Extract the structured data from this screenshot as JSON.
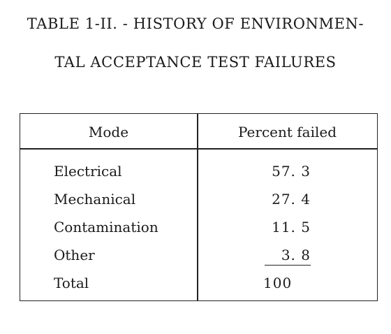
{
  "title": {
    "line1": "TABLE 1-II. - HISTORY OF ENVIRONMEN-",
    "line2": "TAL ACCEPTANCE TEST FAILURES"
  },
  "table": {
    "headers": {
      "mode": "Mode",
      "percent": "Percent failed"
    },
    "rows": [
      {
        "mode": "Electrical",
        "percent": "57. 3"
      },
      {
        "mode": "Mechanical",
        "percent": "27. 4"
      },
      {
        "mode": "Contamination",
        "percent": "11. 5"
      },
      {
        "mode": "Other",
        "percent": "3. 8"
      }
    ],
    "total": {
      "mode": "Total",
      "percent": "100"
    }
  }
}
